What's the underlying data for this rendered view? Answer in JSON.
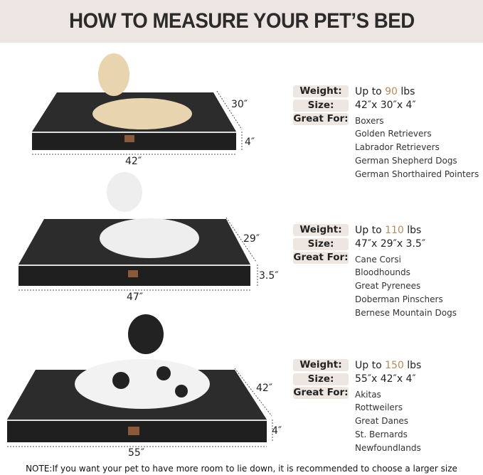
{
  "title": "HOW TO MEASURE YOUR PET’S BED",
  "beds": [
    {
      "weight_prefix": "Up to ",
      "weight_value": "90",
      "weight_unit": " lbs",
      "size": "42″x 30″x 4″",
      "breeds": [
        "Boxers",
        "Golden Retrievers",
        "Labrador Retrievers",
        "German Shepherd Dogs",
        "German Shorthaired Pointers"
      ],
      "length": "42″",
      "width": "30″",
      "height": "4″"
    },
    {
      "weight_prefix": "Up to ",
      "weight_value": "110",
      "weight_unit": " lbs",
      "size": "47″x 29″x 3.5″",
      "breeds": [
        "Cane Corsi",
        "Bloodhounds",
        "Great Pyrenees",
        "Doberman Pinschers",
        "Bernese Mountain Dogs"
      ],
      "length": "47″",
      "width": "29″",
      "height": "3.5″"
    },
    {
      "weight_prefix": "Up to ",
      "weight_value": "150",
      "weight_unit": " lbs",
      "size": "55″x 42″x 4″",
      "breeds": [
        "Akitas",
        "Rottweilers",
        "Great Danes",
        "St. Bernards",
        "Newfoundlands"
      ],
      "length": "55″",
      "width": "42″",
      "height": "4″"
    }
  ],
  "labels": {
    "weight": "Weight:",
    "size": "Size:",
    "great_for": "Great For:"
  },
  "note": "NOTE:If you want your pet to have more room to lie down, it is recommended to choose a larger size",
  "colors": {
    "header_bg": "#ede5e1",
    "label_bg": "#eee6e1",
    "accent": "#b98a5b",
    "bed": "#2a2a2a"
  }
}
